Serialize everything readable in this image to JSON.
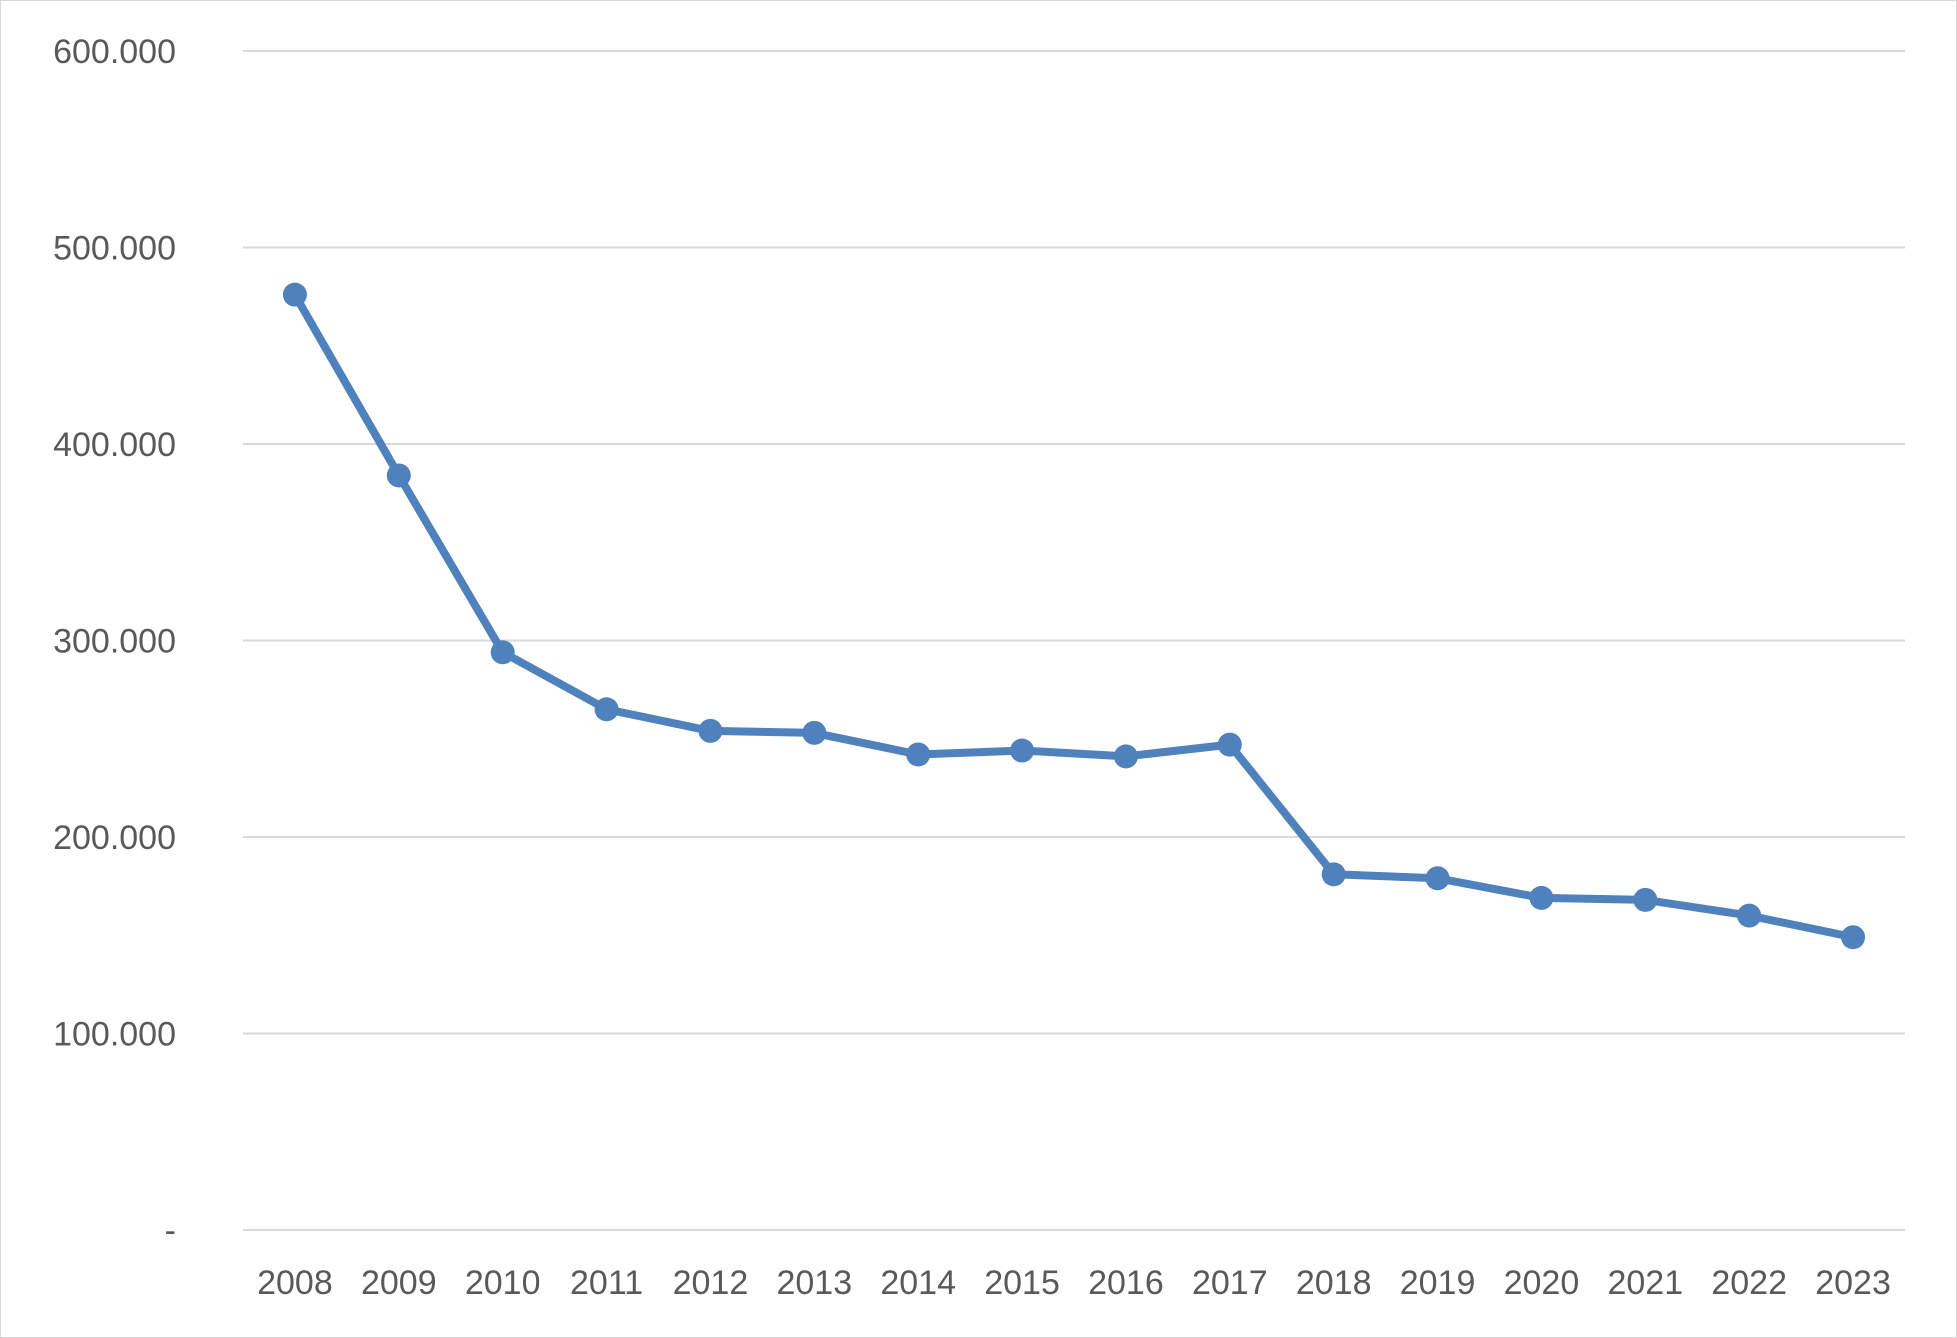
{
  "chart_data": {
    "type": "line",
    "title": "",
    "xlabel": "",
    "ylabel": "",
    "categories": [
      "2008",
      "2009",
      "2010",
      "2011",
      "2012",
      "2013",
      "2014",
      "2015",
      "2016",
      "2017",
      "2018",
      "2019",
      "2020",
      "2021",
      "2022",
      "2023"
    ],
    "series": [
      {
        "values": [
          476000,
          384000,
          294000,
          265000,
          254000,
          253000,
          242000,
          244000,
          241000,
          247000,
          181000,
          179000,
          169000,
          168000,
          160000,
          149000
        ],
        "color": "#4f81bd"
      }
    ],
    "ylim": [
      0,
      600000
    ],
    "y_ticks": [
      0,
      100000,
      200000,
      300000,
      400000,
      500000,
      600000
    ],
    "y_tick_labels": [
      "-",
      "100.000",
      "200.000",
      "300.000",
      "400.000",
      "500.000",
      "600.000"
    ],
    "grid": true,
    "legend": "none",
    "colors": {
      "line": "#4f81bd",
      "grid": "#d9d9d9",
      "text": "#595959"
    }
  }
}
